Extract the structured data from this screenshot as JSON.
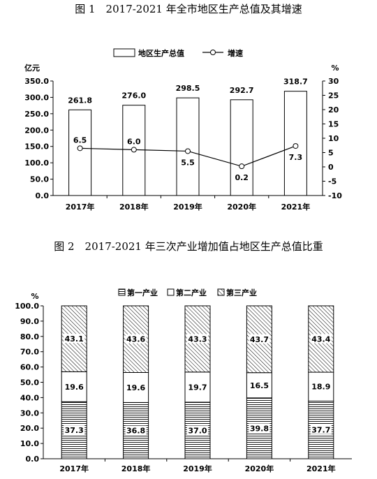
{
  "chart_data": [
    {
      "type": "bar",
      "title": "图 1　2017-2021 年全市地区生产总值及其增速",
      "categories": [
        "2017年",
        "2018年",
        "2019年",
        "2020年",
        "2021年"
      ],
      "y_unit_left": "亿元",
      "y_unit_right": "%",
      "ylim_left": [
        0,
        350
      ],
      "ylim_right": [
        -10,
        30
      ],
      "y_ticks_left": [
        "0.0",
        "50.0",
        "100.0",
        "150.0",
        "200.0",
        "250.0",
        "300.0",
        "350.0"
      ],
      "y_ticks_right": [
        "-10",
        "-5",
        "0",
        "5",
        "10",
        "15",
        "20",
        "25",
        "30"
      ],
      "legend_position": "top",
      "series": [
        {
          "name": "地区生产总值",
          "type": "bar",
          "axis": "left",
          "values": [
            261.8,
            276.0,
            298.5,
            292.7,
            318.7
          ],
          "labels": [
            "261.8",
            "276.0",
            "298.5",
            "292.7",
            "318.7"
          ]
        },
        {
          "name": "增速",
          "type": "line",
          "axis": "right",
          "values": [
            6.5,
            6.0,
            5.5,
            0.2,
            7.3
          ],
          "labels": [
            "6.5",
            "6.0",
            "5.5",
            "0.2",
            "7.3"
          ]
        }
      ]
    },
    {
      "type": "bar",
      "stacked": true,
      "title": "图 2　2017-2021 年三次产业增加值占地区生产总值比重",
      "categories": [
        "2017年",
        "2018年",
        "2019年",
        "2020年",
        "2021年"
      ],
      "y_unit": "%",
      "ylim": [
        0,
        100
      ],
      "y_ticks": [
        "0.0",
        "10.0",
        "20.0",
        "30.0",
        "40.0",
        "50.0",
        "60.0",
        "70.0",
        "80.0",
        "90.0",
        "100.0"
      ],
      "legend_position": "top",
      "series": [
        {
          "name": "第一产业",
          "values": [
            37.3,
            36.8,
            37.0,
            39.8,
            37.7
          ],
          "labels": [
            "37.3",
            "36.8",
            "37.0",
            "39.8",
            "37.7"
          ]
        },
        {
          "name": "第二产业",
          "values": [
            19.6,
            19.6,
            19.7,
            16.5,
            18.9
          ],
          "labels": [
            "19.6",
            "19.6",
            "19.7",
            "16.5",
            "18.9"
          ]
        },
        {
          "name": "第三产业",
          "values": [
            43.1,
            43.6,
            43.3,
            43.7,
            43.4
          ],
          "labels": [
            "43.1",
            "43.6",
            "43.3",
            "43.7",
            "43.4"
          ]
        }
      ]
    }
  ]
}
